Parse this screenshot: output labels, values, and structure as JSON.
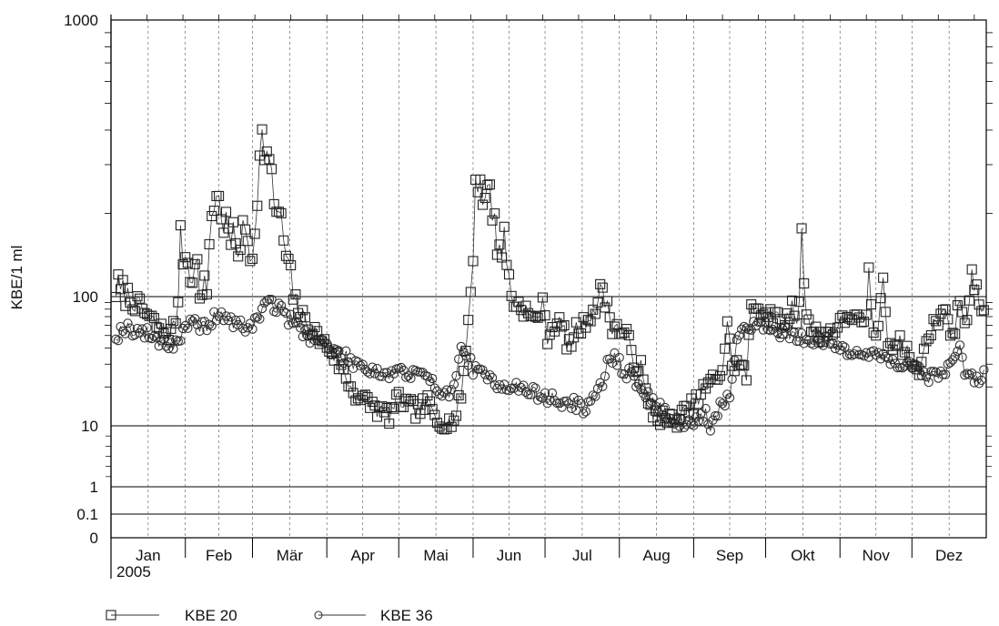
{
  "chart_data": {
    "type": "line",
    "ylabel": "KBE/1 ml",
    "yscale": "log (broken axis; 0, 0.1 and 1 compressed below 10)",
    "yticks": [
      "0",
      "0.1",
      "1",
      "10",
      "100",
      "1000"
    ],
    "ylim": [
      0,
      1000
    ],
    "xlabel": "",
    "x_months": [
      "Jan",
      "Feb",
      "Mär",
      "Apr",
      "Mai",
      "Jun",
      "Jul",
      "Aug",
      "Sep",
      "Okt",
      "Nov",
      "Dez"
    ],
    "x_year": "2005",
    "grid": "horizontal lines at 0, 0.1, 1, 10, 100, 1000; dashed vertical lines at month boundaries and mid-month",
    "legend_position": "bottom-left",
    "series": [
      {
        "name": "KBE 20",
        "marker": "square",
        "anchors": [
          [
            2,
            108
          ],
          [
            5,
            100
          ],
          [
            9,
            92
          ],
          [
            13,
            80
          ],
          [
            17,
            65
          ],
          [
            21,
            55
          ],
          [
            25,
            52
          ],
          [
            27,
            65
          ],
          [
            29,
            155
          ],
          [
            33,
            128
          ],
          [
            36,
            125
          ],
          [
            38,
            98
          ],
          [
            40,
            110
          ],
          [
            42,
            205
          ],
          [
            44,
            230
          ],
          [
            47,
            190
          ],
          [
            50,
            160
          ],
          [
            53,
            155
          ],
          [
            56,
            170
          ],
          [
            59,
            140
          ],
          [
            61,
            250
          ],
          [
            63,
            370
          ],
          [
            65,
            330
          ],
          [
            68,
            225
          ],
          [
            71,
            180
          ],
          [
            74,
            125
          ],
          [
            77,
            90
          ],
          [
            80,
            68
          ],
          [
            84,
            55
          ],
          [
            88,
            45
          ],
          [
            92,
            38
          ],
          [
            96,
            28
          ],
          [
            100,
            20
          ],
          [
            104,
            16
          ],
          [
            108,
            15
          ],
          [
            112,
            13
          ],
          [
            116,
            12
          ],
          [
            120,
            16
          ],
          [
            124,
            14
          ],
          [
            128,
            13
          ],
          [
            132,
            15
          ],
          [
            136,
            11
          ],
          [
            140,
            10
          ],
          [
            144,
            12
          ],
          [
            146,
            18
          ],
          [
            148,
            38
          ],
          [
            149,
            68
          ],
          [
            151,
            155
          ],
          [
            152,
            250
          ],
          [
            154,
            270
          ],
          [
            156,
            210
          ],
          [
            158,
            260
          ],
          [
            160,
            175
          ],
          [
            162,
            150
          ],
          [
            164,
            160
          ],
          [
            166,
            115
          ],
          [
            168,
            90
          ],
          [
            172,
            82
          ],
          [
            176,
            65
          ],
          [
            179,
            78
          ],
          [
            180,
            85
          ],
          [
            182,
            50
          ],
          [
            185,
            62
          ],
          [
            188,
            60
          ],
          [
            191,
            40
          ],
          [
            194,
            55
          ],
          [
            197,
            60
          ],
          [
            200,
            75
          ],
          [
            203,
            85
          ],
          [
            205,
            110
          ],
          [
            207,
            82
          ],
          [
            209,
            60
          ],
          [
            212,
            55
          ],
          [
            215,
            50
          ],
          [
            218,
            32
          ],
          [
            221,
            28
          ],
          [
            224,
            14
          ],
          [
            228,
            12
          ],
          [
            232,
            11
          ],
          [
            236,
            11
          ],
          [
            240,
            13
          ],
          [
            244,
            15
          ],
          [
            248,
            20
          ],
          [
            252,
            23
          ],
          [
            255,
            28
          ],
          [
            257,
            60
          ],
          [
            259,
            30
          ],
          [
            262,
            30
          ],
          [
            265,
            25
          ],
          [
            267,
            80
          ],
          [
            270,
            85
          ],
          [
            272,
            78
          ],
          [
            275,
            75
          ],
          [
            278,
            65
          ],
          [
            281,
            58
          ],
          [
            284,
            85
          ],
          [
            286,
            65
          ],
          [
            288,
            160
          ],
          [
            290,
            85
          ],
          [
            292,
            55
          ],
          [
            296,
            50
          ],
          [
            300,
            55
          ],
          [
            304,
            60
          ],
          [
            308,
            75
          ],
          [
            311,
            65
          ],
          [
            314,
            55
          ],
          [
            316,
            120
          ],
          [
            318,
            55
          ],
          [
            320,
            55
          ],
          [
            322,
            130
          ],
          [
            324,
            45
          ],
          [
            328,
            45
          ],
          [
            332,
            38
          ],
          [
            336,
            25
          ],
          [
            338,
            30
          ],
          [
            341,
            55
          ],
          [
            344,
            60
          ],
          [
            347,
            85
          ],
          [
            349,
            60
          ],
          [
            352,
            55
          ],
          [
            354,
            100
          ],
          [
            356,
            65
          ],
          [
            358,
            90
          ],
          [
            359,
            120
          ],
          [
            361,
            95
          ],
          [
            363,
            85
          ],
          [
            364,
            80
          ]
        ]
      },
      {
        "name": "KBE 36",
        "marker": "circle",
        "anchors": [
          [
            2,
            50
          ],
          [
            6,
            58
          ],
          [
            10,
            55
          ],
          [
            14,
            52
          ],
          [
            18,
            48
          ],
          [
            22,
            45
          ],
          [
            26,
            42
          ],
          [
            30,
            52
          ],
          [
            34,
            62
          ],
          [
            38,
            58
          ],
          [
            42,
            65
          ],
          [
            46,
            75
          ],
          [
            50,
            62
          ],
          [
            54,
            60
          ],
          [
            58,
            58
          ],
          [
            62,
            68
          ],
          [
            64,
            98
          ],
          [
            66,
            92
          ],
          [
            68,
            85
          ],
          [
            72,
            75
          ],
          [
            76,
            62
          ],
          [
            80,
            55
          ],
          [
            84,
            48
          ],
          [
            88,
            45
          ],
          [
            92,
            38
          ],
          [
            96,
            35
          ],
          [
            100,
            32
          ],
          [
            104,
            30
          ],
          [
            108,
            28
          ],
          [
            112,
            26
          ],
          [
            116,
            25
          ],
          [
            120,
            28
          ],
          [
            124,
            24
          ],
          [
            128,
            26
          ],
          [
            132,
            22
          ],
          [
            136,
            20
          ],
          [
            140,
            18
          ],
          [
            144,
            22
          ],
          [
            146,
            42
          ],
          [
            148,
            35
          ],
          [
            152,
            26
          ],
          [
            156,
            24
          ],
          [
            160,
            22
          ],
          [
            164,
            21
          ],
          [
            168,
            20
          ],
          [
            172,
            19
          ],
          [
            176,
            18
          ],
          [
            180,
            17
          ],
          [
            184,
            16
          ],
          [
            188,
            15
          ],
          [
            192,
            15
          ],
          [
            196,
            14
          ],
          [
            200,
            14
          ],
          [
            203,
            18
          ],
          [
            206,
            25
          ],
          [
            208,
            36
          ],
          [
            212,
            30
          ],
          [
            216,
            25
          ],
          [
            220,
            20
          ],
          [
            224,
            17
          ],
          [
            228,
            14
          ],
          [
            232,
            12
          ],
          [
            236,
            11
          ],
          [
            240,
            10
          ],
          [
            244,
            11
          ],
          [
            248,
            12
          ],
          [
            250,
            8
          ],
          [
            252,
            12
          ],
          [
            255,
            15
          ],
          [
            258,
            18
          ],
          [
            262,
            55
          ],
          [
            266,
            62
          ],
          [
            270,
            60
          ],
          [
            274,
            58
          ],
          [
            278,
            55
          ],
          [
            282,
            52
          ],
          [
            286,
            50
          ],
          [
            290,
            48
          ],
          [
            294,
            46
          ],
          [
            298,
            44
          ],
          [
            302,
            42
          ],
          [
            306,
            40
          ],
          [
            310,
            38
          ],
          [
            314,
            36
          ],
          [
            318,
            35
          ],
          [
            322,
            34
          ],
          [
            326,
            33
          ],
          [
            330,
            30
          ],
          [
            334,
            28
          ],
          [
            338,
            26
          ],
          [
            342,
            24
          ],
          [
            346,
            26
          ],
          [
            350,
            28
          ],
          [
            352,
            38
          ],
          [
            354,
            40
          ],
          [
            356,
            26
          ],
          [
            358,
            24
          ],
          [
            360,
            22
          ],
          [
            362,
            24
          ],
          [
            364,
            24
          ]
        ]
      }
    ]
  }
}
